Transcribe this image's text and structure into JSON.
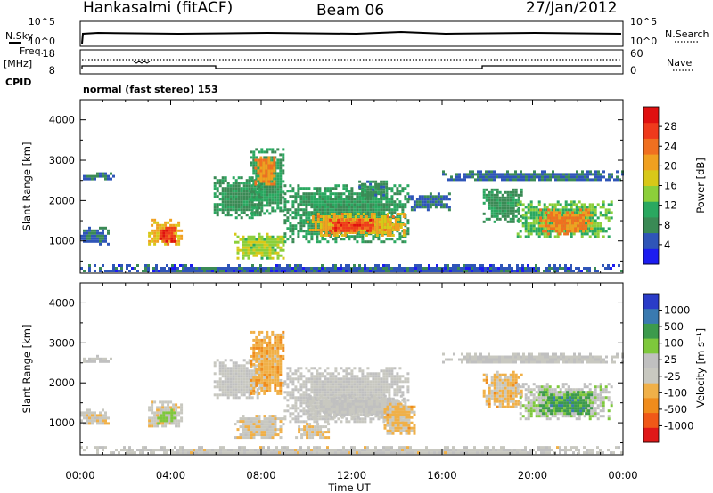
{
  "header": {
    "radar": "Hankasalmi (fitACF)",
    "beam": "Beam 06",
    "date": "27/Jan/2012"
  },
  "strip": {
    "nsky_label": "N.Sky",
    "nsky_ticks": [
      "10^5",
      "10^0"
    ],
    "nsearch_label": "N.Search",
    "nsearch_ticks": [
      "10^5",
      "10^0"
    ],
    "freq_label": "Freq.",
    "freq_unit": "[MHz]",
    "freq_ticks": [
      "18",
      "8"
    ],
    "nave_label": "Nave",
    "nave_ticks": [
      "60",
      "0"
    ],
    "cpid_label": "CPID",
    "cpid_value": "normal (fast stereo) 153"
  },
  "colors": {
    "power": [
      "#1c1cf0",
      "#2f55b8",
      "#3a8a55",
      "#2aa860",
      "#8ccf3a",
      "#d8c818",
      "#f0a020",
      "#f07020",
      "#ef3a1c",
      "#e01010"
    ],
    "velocity": [
      "#e01818",
      "#f05818",
      "#f08c1c",
      "#f0b048",
      "#c8c8c0",
      "#c0c0c0",
      "#7ec83c",
      "#3c9a4c",
      "#3a7ab0",
      "#2a3cc8"
    ]
  },
  "chart_data": [
    {
      "type": "heatmap",
      "quantity": "power",
      "xlabel": "",
      "ylabel": "Slant Range [km]",
      "ylim": [
        200,
        4500
      ],
      "xlim": [
        0,
        24
      ],
      "yticks": [
        "1000",
        "2000",
        "3000",
        "4000"
      ],
      "colorbar": {
        "label": "Power [dB]",
        "ticks": [
          "4",
          "8",
          "12",
          "16",
          "20",
          "24",
          "28"
        ],
        "range": [
          0,
          32
        ]
      },
      "regions": [
        {
          "t0": 0.0,
          "t1": 24.0,
          "r0": 240,
          "r1": 420,
          "v": 5
        },
        {
          "t0": 0.0,
          "t1": 1.2,
          "r0": 950,
          "r1": 1350,
          "v": 6
        },
        {
          "t0": 0.0,
          "t1": 1.5,
          "r0": 2550,
          "r1": 2700,
          "v": 6
        },
        {
          "t0": 3.0,
          "t1": 4.5,
          "r0": 900,
          "r1": 1550,
          "v": 20
        },
        {
          "t0": 3.4,
          "t1": 4.2,
          "r0": 1000,
          "r1": 1350,
          "v": 28
        },
        {
          "t0": 5.9,
          "t1": 8.0,
          "r0": 1600,
          "r1": 2600,
          "v": 9
        },
        {
          "t0": 6.8,
          "t1": 9.0,
          "r0": 600,
          "r1": 1200,
          "v": 15
        },
        {
          "t0": 7.5,
          "t1": 9.0,
          "r0": 1700,
          "r1": 3300,
          "v": 10
        },
        {
          "t0": 7.7,
          "t1": 8.6,
          "r0": 2400,
          "r1": 3100,
          "v": 22
        },
        {
          "t0": 9.0,
          "t1": 14.5,
          "r0": 1000,
          "r1": 2400,
          "v": 10
        },
        {
          "t0": 10.0,
          "t1": 14.3,
          "r0": 1150,
          "r1": 1700,
          "v": 20
        },
        {
          "t0": 11.0,
          "t1": 13.0,
          "r0": 1250,
          "r1": 1550,
          "v": 27
        },
        {
          "t0": 12.3,
          "t1": 13.6,
          "r0": 2100,
          "r1": 2500,
          "v": 8
        },
        {
          "t0": 14.5,
          "t1": 16.3,
          "r0": 1800,
          "r1": 2200,
          "v": 6
        },
        {
          "t0": 16.0,
          "t1": 24.0,
          "r0": 2500,
          "r1": 2750,
          "v": 6
        },
        {
          "t0": 17.8,
          "t1": 19.5,
          "r0": 1500,
          "r1": 2300,
          "v": 9
        },
        {
          "t0": 19.3,
          "t1": 23.5,
          "r0": 1100,
          "r1": 2000,
          "v": 13
        },
        {
          "t0": 20.3,
          "t1": 22.6,
          "r0": 1200,
          "r1": 1800,
          "v": 23
        }
      ]
    },
    {
      "type": "heatmap",
      "quantity": "velocity",
      "xlabel": "Time UT",
      "ylabel": "Slant Range [km]",
      "ylim": [
        200,
        4500
      ],
      "xlim": [
        0,
        24
      ],
      "xticks": [
        "00:00",
        "04:00",
        "08:00",
        "12:00",
        "16:00",
        "20:00",
        "00:00"
      ],
      "yticks": [
        "1000",
        "2000",
        "3000",
        "4000"
      ],
      "colorbar": {
        "label": "Velocity [m s⁻¹]",
        "ticks": [
          "-1000",
          "-500",
          "-100",
          "-25",
          "25",
          "100",
          "500",
          "1000"
        ],
        "range": [
          -1200,
          1200
        ]
      },
      "regions": [
        {
          "t0": 0.0,
          "t1": 24.0,
          "r0": 240,
          "r1": 420,
          "v": -60
        },
        {
          "t0": 0.0,
          "t1": 1.2,
          "r0": 950,
          "r1": 1350,
          "v": -150
        },
        {
          "t0": 0.0,
          "t1": 1.5,
          "r0": 2550,
          "r1": 2700,
          "v": -10
        },
        {
          "t0": 3.0,
          "t1": 4.5,
          "r0": 900,
          "r1": 1550,
          "v": -150
        },
        {
          "t0": 3.4,
          "t1": 4.2,
          "r0": 1000,
          "r1": 1350,
          "v": 300
        },
        {
          "t0": 5.9,
          "t1": 8.0,
          "r0": 1600,
          "r1": 2600,
          "v": -5
        },
        {
          "t0": 6.8,
          "t1": 9.0,
          "r0": 600,
          "r1": 1200,
          "v": -150
        },
        {
          "t0": 7.5,
          "t1": 9.0,
          "r0": 1700,
          "r1": 3300,
          "v": -400
        },
        {
          "t0": 9.0,
          "t1": 14.5,
          "r0": 1000,
          "r1": 2400,
          "v": -10
        },
        {
          "t0": 10.0,
          "t1": 14.3,
          "r0": 1150,
          "r1": 1700,
          "v": 0
        },
        {
          "t0": 9.5,
          "t1": 11.0,
          "r0": 600,
          "r1": 1000,
          "v": -200
        },
        {
          "t0": 13.3,
          "t1": 14.8,
          "r0": 700,
          "r1": 1500,
          "v": -300
        },
        {
          "t0": 16.0,
          "t1": 24.0,
          "r0": 2500,
          "r1": 2750,
          "v": -5
        },
        {
          "t0": 17.8,
          "t1": 19.5,
          "r0": 1400,
          "r1": 2300,
          "v": -300
        },
        {
          "t0": 19.3,
          "t1": 23.5,
          "r0": 1100,
          "r1": 2000,
          "v": 150
        },
        {
          "t0": 20.3,
          "t1": 22.6,
          "r0": 1200,
          "r1": 1800,
          "v": 600
        }
      ]
    }
  ]
}
